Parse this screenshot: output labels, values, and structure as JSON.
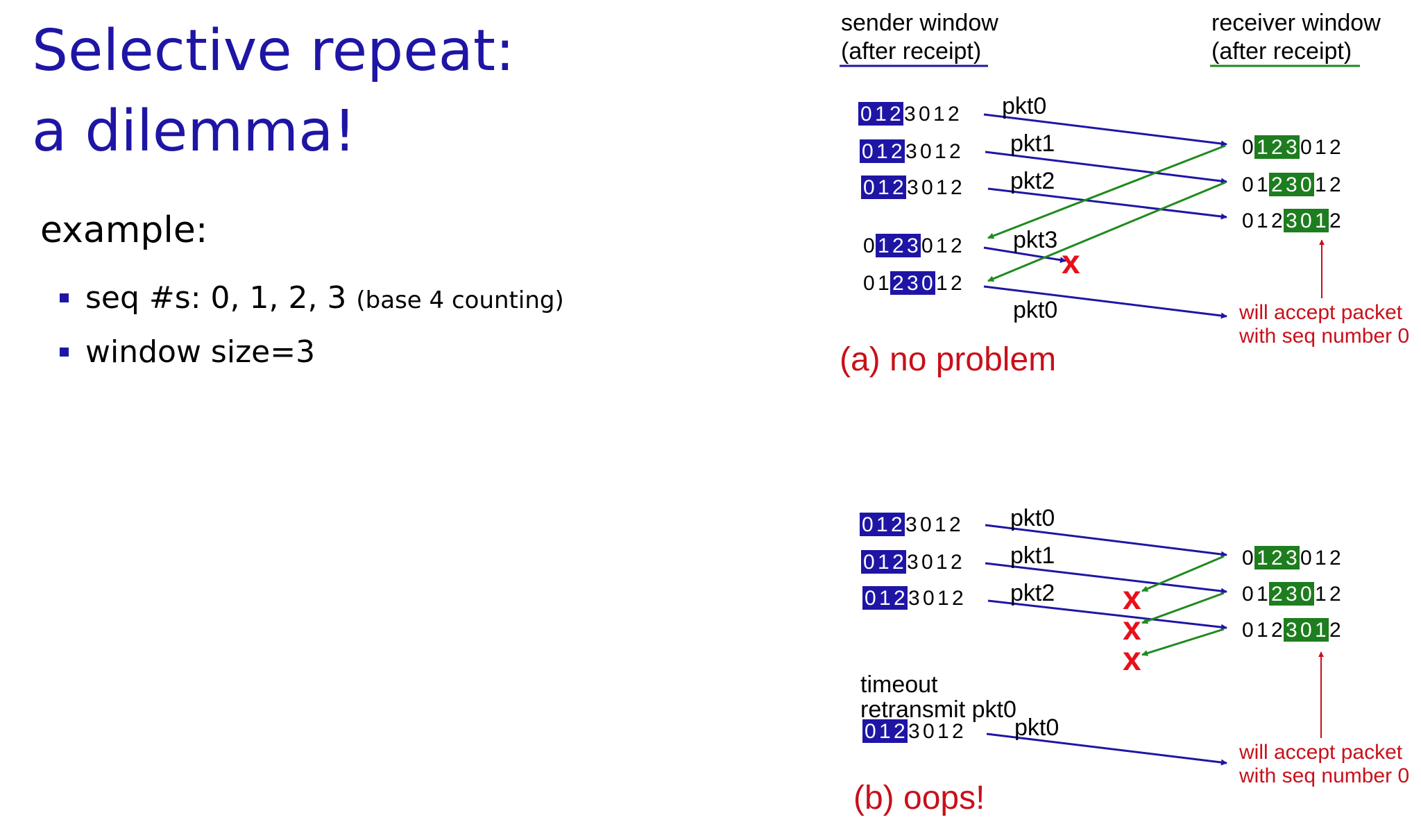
{
  "title_line1": "Selective repeat:",
  "title_line2": "a dilemma!",
  "example_label": "example:",
  "bullets": {
    "seq_main": "seq #s: 0, 1, 2, 3",
    "seq_note": "(base 4 counting)",
    "window": "window size=3"
  },
  "headers": {
    "sender_line1": "sender window",
    "sender_line2": "(after receipt)",
    "receiver_line1": "receiver window",
    "receiver_line2": "(after receipt)"
  },
  "seq_digits": [
    "0",
    "1",
    "2",
    "3",
    "0",
    "1",
    "2"
  ],
  "scenario_a": {
    "caption": "(a) no problem",
    "sender_windows": [
      {
        "start": 0,
        "size": 3
      },
      {
        "start": 0,
        "size": 3
      },
      {
        "start": 0,
        "size": 3
      },
      {
        "start": 1,
        "size": 3
      },
      {
        "start": 2,
        "size": 3
      }
    ],
    "receiver_windows": [
      {
        "start": 1,
        "size": 3
      },
      {
        "start": 2,
        "size": 3
      },
      {
        "start": 3,
        "size": 3
      }
    ],
    "packet_labels": [
      "pkt0",
      "pkt1",
      "pkt2",
      "pkt3",
      "pkt0"
    ],
    "loss_mark": "x",
    "note_line1": "will accept packet",
    "note_line2": "with seq number 0"
  },
  "scenario_b": {
    "caption": "(b) oops!",
    "sender_windows": [
      {
        "start": 0,
        "size": 3
      },
      {
        "start": 0,
        "size": 3
      },
      {
        "start": 0,
        "size": 3
      },
      {
        "start": 0,
        "size": 3
      }
    ],
    "receiver_windows": [
      {
        "start": 1,
        "size": 3
      },
      {
        "start": 2,
        "size": 3
      },
      {
        "start": 3,
        "size": 3
      }
    ],
    "packet_labels": [
      "pkt0",
      "pkt1",
      "pkt2",
      "pkt0"
    ],
    "loss_marks": [
      "x",
      "x",
      "x"
    ],
    "timeout_line1": "timeout",
    "timeout_line2": "retransmit pkt0",
    "note_line1": "will accept packet",
    "note_line2": "with seq number 0"
  },
  "colors": {
    "title": "#1f15a5",
    "sender": "#1f15a5",
    "receiver": "#1e7d1e",
    "ack_arrow": "#1e8a1e",
    "loss": "#e8101a",
    "note": "#c8101a"
  }
}
